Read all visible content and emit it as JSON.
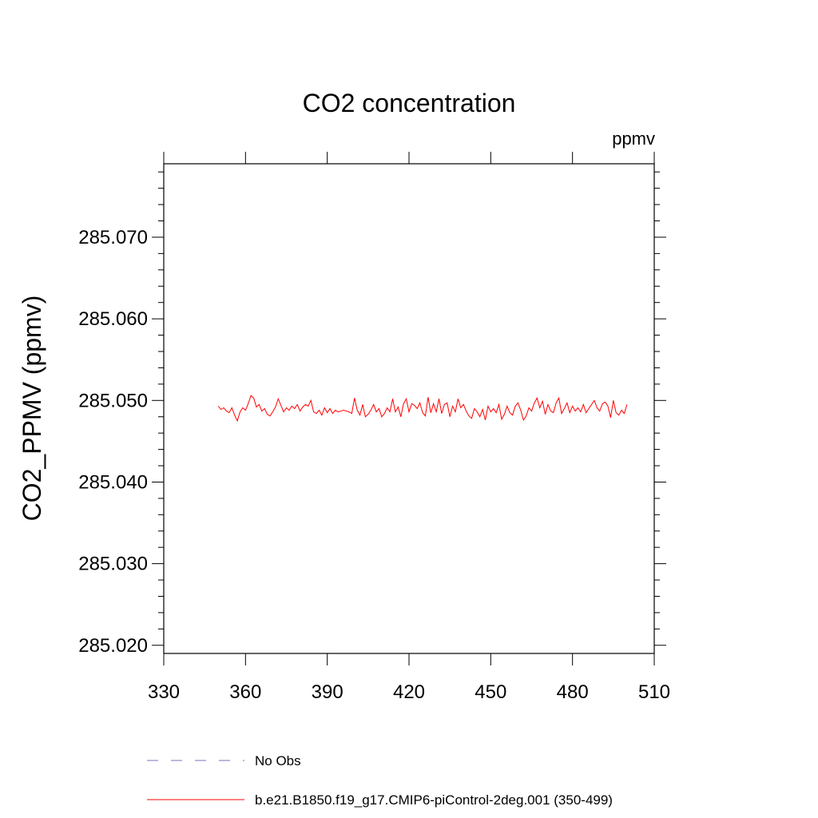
{
  "chart_data": {
    "type": "line",
    "title": "CO2 concentration",
    "units": "ppmv",
    "xlabel": "",
    "ylabel": "CO2_PPMV  (ppmv)",
    "xlim": [
      330,
      510
    ],
    "ylim": [
      285.019,
      285.079
    ],
    "x_ticks": [
      "330",
      "360",
      "390",
      "420",
      "450",
      "480",
      "510"
    ],
    "x_tick_values": [
      330,
      360,
      390,
      420,
      450,
      480,
      510
    ],
    "y_ticks": [
      "285.020",
      "285.030",
      "285.040",
      "285.050",
      "285.060",
      "285.070"
    ],
    "y_tick_values": [
      285.02,
      285.03,
      285.04,
      285.05,
      285.06,
      285.07
    ],
    "legend": [
      {
        "label": "No Obs",
        "style": "dashed",
        "color": "#7a72c0"
      },
      {
        "label": "b.e21.B1850.f19_g17.CMIP6-piControl-2deg.001 (350-499)",
        "style": "solid",
        "color": "#ff0000"
      }
    ],
    "series": [
      {
        "name": "b.e21.B1850.f19_g17.CMIP6-piControl-2deg.001 (350-499)",
        "color": "#ff0000",
        "x_start": 350,
        "x_step": 1,
        "values": [
          285.0493,
          285.0489,
          285.0491,
          285.0487,
          285.0485,
          285.0491,
          285.0482,
          285.0475,
          285.0486,
          285.0491,
          285.0488,
          285.0496,
          285.0506,
          285.0503,
          285.0492,
          285.0495,
          285.0487,
          285.049,
          285.0483,
          285.0481,
          285.0486,
          285.0492,
          285.0502,
          285.0494,
          285.0486,
          285.0491,
          285.0488,
          285.0493,
          285.049,
          285.0495,
          285.0487,
          285.0492,
          285.0495,
          285.0493,
          285.05,
          285.0486,
          285.0484,
          285.0488,
          285.0482,
          285.0491,
          285.0485,
          285.049,
          285.0484,
          285.0488,
          285.0486,
          285.0487,
          285.0488,
          285.0487,
          285.0486,
          285.0484,
          285.0503,
          285.0488,
          285.0482,
          285.0495,
          285.048,
          285.0483,
          285.0488,
          285.0495,
          285.0486,
          285.049,
          285.048,
          285.0484,
          285.0491,
          285.0486,
          285.0502,
          285.0486,
          285.0492,
          285.048,
          285.0496,
          285.0502,
          285.0486,
          285.0496,
          285.0494,
          285.049,
          285.0497,
          285.0485,
          285.0481,
          285.0504,
          285.0485,
          285.0496,
          285.0486,
          285.0502,
          285.0484,
          285.0495,
          285.0497,
          285.048,
          285.0493,
          285.0486,
          285.0502,
          285.0491,
          285.0495,
          285.0487,
          285.0481,
          285.0478,
          285.049,
          285.0486,
          285.048,
          285.0489,
          285.0476,
          285.0493,
          285.0486,
          285.049,
          285.0485,
          285.0495,
          285.0477,
          285.0483,
          285.0493,
          285.0485,
          285.0482,
          285.0493,
          285.0497,
          285.0488,
          285.0476,
          285.0481,
          285.0491,
          285.0487,
          285.0497,
          285.0503,
          285.0491,
          285.0499,
          285.0483,
          285.0495,
          285.0487,
          285.0485,
          285.0497,
          285.0503,
          285.0484,
          285.049,
          285.0497,
          285.0485,
          285.0493,
          285.0487,
          285.0491,
          285.0486,
          285.0495,
          285.0485,
          285.049,
          285.0495,
          285.05,
          285.0491,
          285.0487,
          285.0496,
          285.0498,
          285.0493,
          285.0479,
          285.05,
          285.0485,
          285.0482,
          285.0488,
          285.0484,
          285.0495
        ]
      }
    ]
  }
}
